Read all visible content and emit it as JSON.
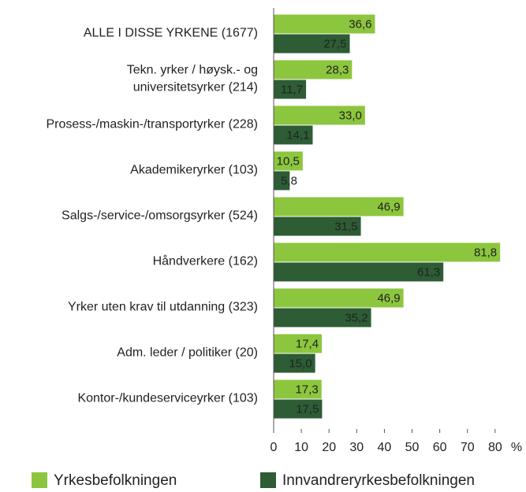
{
  "chart_data": {
    "type": "bar",
    "orientation": "horizontal",
    "categories": [
      "ALLE I DISSE YRKENE (1677)",
      "Tekn. yrker / høysk.- og\nuniversitetsyrker (214)",
      "Prosess-/maskin-/transportyrker (228)",
      "Akademikeryrker (103)",
      "Salgs-/service-/omsorgsyrker (524)",
      "Håndverkere (162)",
      "Yrker uten krav til utdanning (323)",
      "Adm. leder / politiker (20)",
      "Kontor-/kundeserviceyrker (103)"
    ],
    "series": [
      {
        "name": "Yrkesbefolkningen",
        "color": "#8cc63e",
        "values": [
          36.6,
          28.3,
          33.0,
          10.5,
          46.9,
          81.8,
          46.9,
          17.4,
          17.3
        ],
        "value_labels": [
          "36,6",
          "28,3",
          "33,0",
          "10,5",
          "46,9",
          "81,8",
          "46,9",
          "17,4",
          "17,3"
        ]
      },
      {
        "name": "Innvandreryrkesbefolkningen",
        "color": "#2d5c35",
        "values": [
          27.5,
          11.7,
          14.1,
          5.8,
          31.5,
          61.3,
          35.2,
          15.0,
          17.5
        ],
        "value_labels": [
          "27,5",
          "11,7",
          "14,1",
          "5,8",
          "31,5",
          "61,3",
          "35,2",
          "15,0",
          "17,5"
        ]
      }
    ],
    "xlabel": "%",
    "xlim": [
      0,
      85
    ],
    "xticks": [
      0,
      10,
      20,
      30,
      40,
      50,
      60,
      70,
      80
    ],
    "legend": "bottom"
  }
}
